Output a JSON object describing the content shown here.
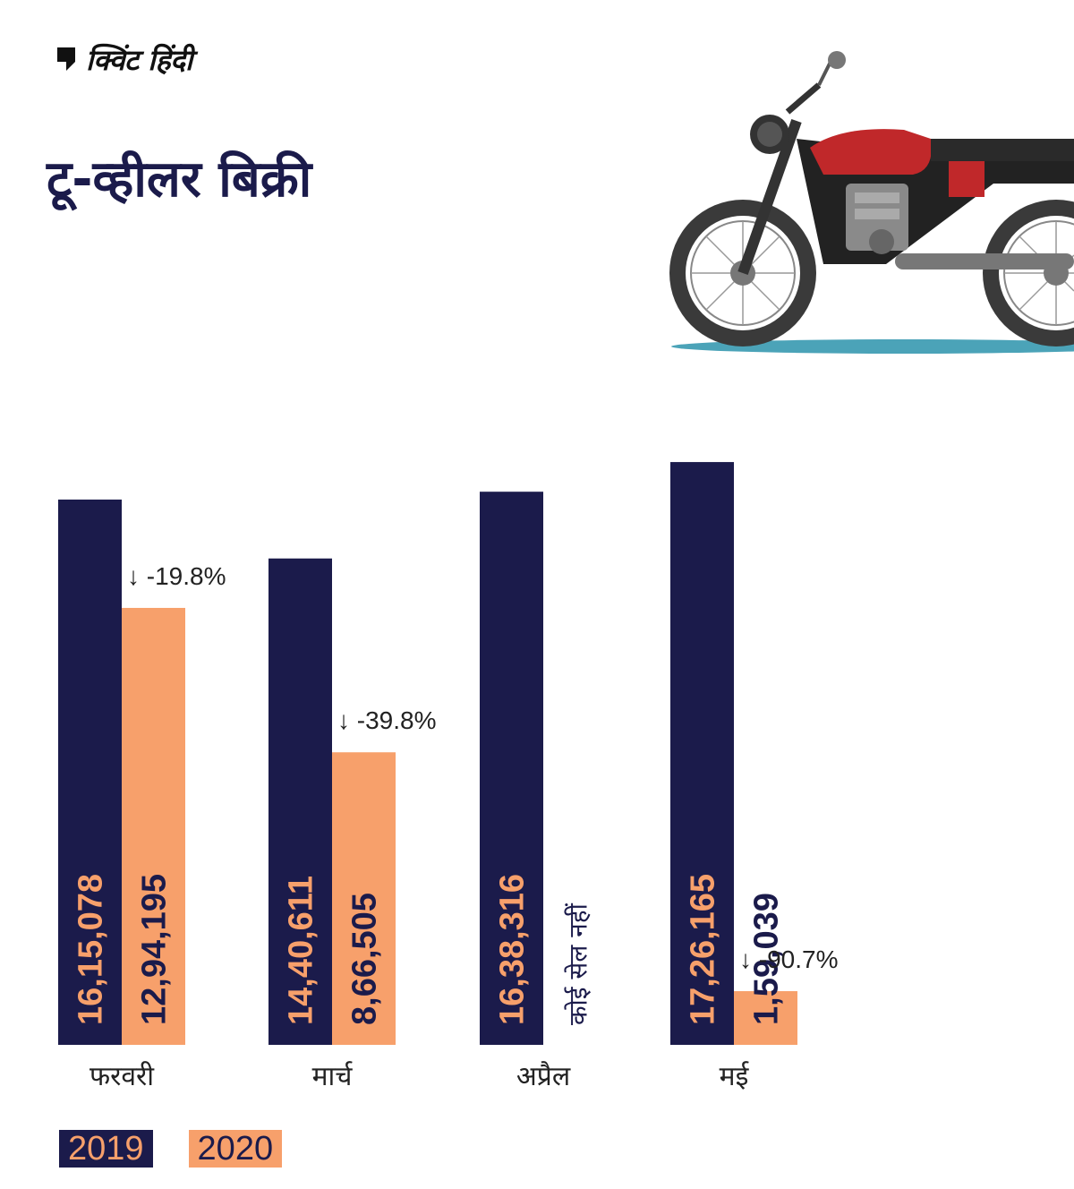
{
  "brand": {
    "logo_text": "क्विंट हिंदी"
  },
  "title": "टू-व्हीलर बिक्री",
  "colors": {
    "navy": "#1b1b4b",
    "orange": "#f7a06b",
    "text": "#222222",
    "road": "#4ba3b8",
    "bike_red": "#c0282a"
  },
  "chart_data": {
    "type": "bar",
    "title": "टू-व्हीलर बिक्री",
    "categories": [
      "फरवरी",
      "मार्च",
      "अप्रैल",
      "मई"
    ],
    "series": [
      {
        "name": "2019",
        "values": [
          1615078,
          1440611,
          1638316,
          1726165
        ],
        "labels": [
          "16,15,078",
          "14,40,611",
          "16,38,316",
          "17,26,165"
        ]
      },
      {
        "name": "2020",
        "values": [
          1294195,
          866505,
          0,
          159039
        ],
        "labels": [
          "12,94,195",
          "8,66,505",
          "कोई सेल नहीं",
          "1,59,039"
        ]
      }
    ],
    "annotations": [
      "↓ -19.8%",
      "↓ -39.8%",
      "",
      "↓ -90.7%"
    ],
    "ylim": [
      0,
      1790000
    ],
    "grid": false,
    "legend": "bottom-left"
  }
}
